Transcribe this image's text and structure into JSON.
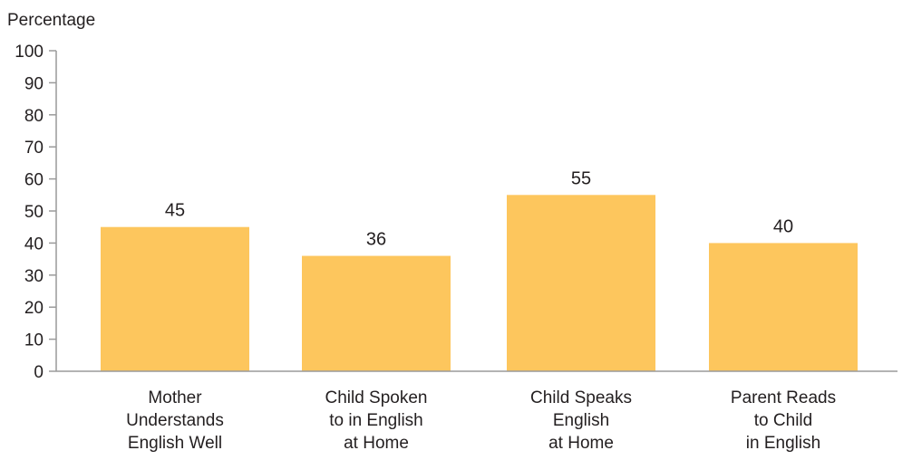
{
  "chart_data": {
    "type": "bar",
    "categories": [
      [
        "Mother",
        "Understands",
        "English Well"
      ],
      [
        "Child Spoken",
        "to in English",
        "at Home"
      ],
      [
        "Child Speaks",
        "English",
        "at Home"
      ],
      [
        "Parent Reads",
        "to Child",
        "in English"
      ]
    ],
    "values": [
      45,
      36,
      55,
      40
    ],
    "ylabel": "Percentage",
    "ylim": [
      0,
      100
    ],
    "yticks": [
      0,
      10,
      20,
      30,
      40,
      50,
      60,
      70,
      80,
      90,
      100
    ],
    "bar_color": "#fdc65d",
    "grid": false,
    "legend": "none"
  }
}
